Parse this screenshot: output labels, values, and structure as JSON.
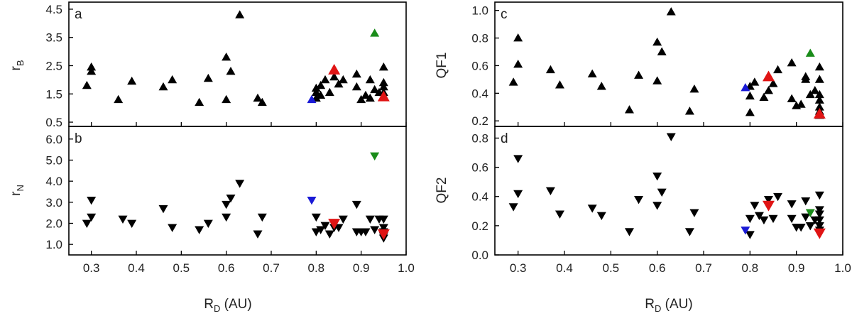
{
  "chart_data": [
    {
      "id": "a",
      "type": "scatter",
      "panel_label": "a",
      "ylabel": "r",
      "ylabel_sub": "B",
      "xlabel": "",
      "xlabel_sub": "",
      "marker": "triangle-up",
      "xlim": [
        0.25,
        1.0
      ],
      "ylim": [
        0.35,
        4.75
      ],
      "xticks": [
        "0.3",
        "0.4",
        "0.5",
        "0.6",
        "0.7",
        "0.8",
        "0.9",
        "1.0"
      ],
      "yticks": [
        "0.5",
        "1.5",
        "2.5",
        "3.5",
        "4.5"
      ],
      "series": [
        {
          "color": "#000000",
          "points": [
            [
              0.29,
              1.8
            ],
            [
              0.3,
              2.3
            ],
            [
              0.3,
              2.45
            ],
            [
              0.36,
              1.3
            ],
            [
              0.39,
              1.95
            ],
            [
              0.46,
              1.75
            ],
            [
              0.48,
              2.0
            ],
            [
              0.54,
              1.2
            ],
            [
              0.56,
              2.05
            ],
            [
              0.6,
              2.8
            ],
            [
              0.6,
              1.3
            ],
            [
              0.61,
              2.3
            ],
            [
              0.63,
              4.3
            ],
            [
              0.67,
              1.35
            ],
            [
              0.68,
              1.2
            ],
            [
              0.8,
              1.35
            ],
            [
              0.8,
              1.55
            ],
            [
              0.8,
              1.7
            ],
            [
              0.81,
              1.45
            ],
            [
              0.81,
              1.8
            ],
            [
              0.82,
              2.0
            ],
            [
              0.83,
              1.55
            ],
            [
              0.84,
              2.1
            ],
            [
              0.85,
              1.85
            ],
            [
              0.86,
              2.0
            ],
            [
              0.89,
              2.2
            ],
            [
              0.89,
              1.75
            ],
            [
              0.9,
              1.3
            ],
            [
              0.91,
              1.45
            ],
            [
              0.92,
              2.0
            ],
            [
              0.92,
              1.35
            ],
            [
              0.93,
              1.65
            ],
            [
              0.94,
              1.55
            ],
            [
              0.95,
              1.9
            ],
            [
              0.95,
              1.75
            ],
            [
              0.95,
              1.55
            ],
            [
              0.95,
              1.4
            ],
            [
              0.95,
              2.45
            ]
          ]
        },
        {
          "color": "#1a1ad6",
          "points": [
            [
              0.79,
              1.3
            ]
          ]
        },
        {
          "color": "#e01414",
          "big": true,
          "points": [
            [
              0.84,
              2.35
            ],
            [
              0.95,
              1.4
            ]
          ]
        },
        {
          "color": "#1a8c1a",
          "points": [
            [
              0.93,
              3.65
            ]
          ]
        }
      ]
    },
    {
      "id": "b",
      "type": "scatter",
      "panel_label": "b",
      "ylabel": "r",
      "ylabel_sub": "N",
      "xlabel": "R",
      "xlabel_sub": "D",
      "xlabel_suffix": " (AU)",
      "marker": "triangle-down",
      "xlim": [
        0.25,
        1.0
      ],
      "ylim": [
        0.5,
        6.6
      ],
      "xticks": [
        "0.3",
        "0.4",
        "0.5",
        "0.6",
        "0.7",
        "0.8",
        "0.9",
        "1.0"
      ],
      "yticks": [
        "1.0",
        "2.0",
        "3.0",
        "4.0",
        "5.0",
        "6.0"
      ],
      "series": [
        {
          "color": "#000000",
          "points": [
            [
              0.29,
              2.0
            ],
            [
              0.3,
              2.3
            ],
            [
              0.3,
              3.1
            ],
            [
              0.37,
              2.2
            ],
            [
              0.39,
              2.0
            ],
            [
              0.46,
              2.7
            ],
            [
              0.48,
              1.8
            ],
            [
              0.54,
              1.7
            ],
            [
              0.56,
              2.0
            ],
            [
              0.6,
              2.3
            ],
            [
              0.6,
              2.9
            ],
            [
              0.61,
              3.2
            ],
            [
              0.63,
              3.9
            ],
            [
              0.67,
              1.5
            ],
            [
              0.68,
              2.3
            ],
            [
              0.8,
              1.6
            ],
            [
              0.8,
              2.3
            ],
            [
              0.81,
              1.7
            ],
            [
              0.82,
              1.9
            ],
            [
              0.83,
              1.5
            ],
            [
              0.84,
              1.8
            ],
            [
              0.85,
              1.8
            ],
            [
              0.86,
              2.2
            ],
            [
              0.89,
              2.9
            ],
            [
              0.89,
              1.6
            ],
            [
              0.9,
              1.6
            ],
            [
              0.91,
              1.6
            ],
            [
              0.92,
              2.2
            ],
            [
              0.93,
              1.7
            ],
            [
              0.94,
              2.2
            ],
            [
              0.95,
              2.2
            ],
            [
              0.95,
              1.8
            ],
            [
              0.95,
              1.6
            ],
            [
              0.95,
              1.4
            ],
            [
              0.95,
              1.3
            ]
          ]
        },
        {
          "color": "#1a1ad6",
          "points": [
            [
              0.79,
              3.1
            ]
          ]
        },
        {
          "color": "#e01414",
          "big": true,
          "points": [
            [
              0.84,
              2.0
            ],
            [
              0.95,
              1.5
            ]
          ]
        },
        {
          "color": "#1a8c1a",
          "points": [
            [
              0.93,
              5.2
            ]
          ]
        }
      ]
    },
    {
      "id": "c",
      "type": "scatter",
      "panel_label": "c",
      "ylabel": "QF1",
      "ylabel_sub": "",
      "xlabel": "",
      "xlabel_sub": "",
      "marker": "triangle-up",
      "xlim": [
        0.25,
        1.0
      ],
      "ylim": [
        0.16,
        1.06
      ],
      "xticks": [
        "0.3",
        "0.4",
        "0.5",
        "0.6",
        "0.7",
        "0.8",
        "0.9",
        "1.0"
      ],
      "yticks": [
        "0.2",
        "0.4",
        "0.6",
        "0.8",
        "1.0"
      ],
      "series": [
        {
          "color": "#000000",
          "points": [
            [
              0.29,
              0.48
            ],
            [
              0.3,
              0.8
            ],
            [
              0.3,
              0.61
            ],
            [
              0.37,
              0.57
            ],
            [
              0.39,
              0.46
            ],
            [
              0.46,
              0.54
            ],
            [
              0.48,
              0.45
            ],
            [
              0.54,
              0.28
            ],
            [
              0.56,
              0.53
            ],
            [
              0.6,
              0.77
            ],
            [
              0.6,
              0.49
            ],
            [
              0.61,
              0.7
            ],
            [
              0.63,
              0.99
            ],
            [
              0.67,
              0.27
            ],
            [
              0.68,
              0.43
            ],
            [
              0.8,
              0.26
            ],
            [
              0.8,
              0.38
            ],
            [
              0.8,
              0.45
            ],
            [
              0.81,
              0.48
            ],
            [
              0.83,
              0.37
            ],
            [
              0.84,
              0.42
            ],
            [
              0.85,
              0.47
            ],
            [
              0.86,
              0.57
            ],
            [
              0.89,
              0.62
            ],
            [
              0.89,
              0.36
            ],
            [
              0.9,
              0.31
            ],
            [
              0.91,
              0.32
            ],
            [
              0.92,
              0.5
            ],
            [
              0.92,
              0.52
            ],
            [
              0.93,
              0.39
            ],
            [
              0.94,
              0.42
            ],
            [
              0.95,
              0.59
            ],
            [
              0.95,
              0.5
            ],
            [
              0.95,
              0.39
            ],
            [
              0.95,
              0.35
            ],
            [
              0.95,
              0.3
            ],
            [
              0.95,
              0.27
            ],
            [
              0.95,
              0.24
            ]
          ]
        },
        {
          "color": "#1a1ad6",
          "points": [
            [
              0.79,
              0.44
            ]
          ]
        },
        {
          "color": "#e01414",
          "big": true,
          "points": [
            [
              0.84,
              0.52
            ],
            [
              0.95,
              0.25
            ]
          ]
        },
        {
          "color": "#1a8c1a",
          "points": [
            [
              0.93,
              0.69
            ]
          ]
        }
      ]
    },
    {
      "id": "d",
      "type": "scatter",
      "panel_label": "d",
      "ylabel": "QF2",
      "ylabel_sub": "",
      "xlabel": "R",
      "xlabel_sub": "D",
      "xlabel_suffix": " (AU)",
      "marker": "triangle-down",
      "xlim": [
        0.25,
        1.0
      ],
      "ylim": [
        0.0,
        0.88
      ],
      "xticks": [
        "0.3",
        "0.4",
        "0.5",
        "0.6",
        "0.7",
        "0.8",
        "0.9",
        "1.0"
      ],
      "yticks": [
        "0.0",
        "0.2",
        "0.4",
        "0.6",
        "0.8"
      ],
      "series": [
        {
          "color": "#000000",
          "points": [
            [
              0.29,
              0.33
            ],
            [
              0.3,
              0.42
            ],
            [
              0.3,
              0.66
            ],
            [
              0.37,
              0.44
            ],
            [
              0.39,
              0.28
            ],
            [
              0.46,
              0.32
            ],
            [
              0.48,
              0.27
            ],
            [
              0.54,
              0.16
            ],
            [
              0.56,
              0.38
            ],
            [
              0.6,
              0.54
            ],
            [
              0.6,
              0.34
            ],
            [
              0.61,
              0.43
            ],
            [
              0.63,
              0.81
            ],
            [
              0.67,
              0.16
            ],
            [
              0.68,
              0.29
            ],
            [
              0.8,
              0.14
            ],
            [
              0.8,
              0.25
            ],
            [
              0.81,
              0.34
            ],
            [
              0.82,
              0.27
            ],
            [
              0.83,
              0.24
            ],
            [
              0.84,
              0.38
            ],
            [
              0.85,
              0.25
            ],
            [
              0.86,
              0.4
            ],
            [
              0.89,
              0.35
            ],
            [
              0.89,
              0.25
            ],
            [
              0.9,
              0.19
            ],
            [
              0.91,
              0.19
            ],
            [
              0.92,
              0.37
            ],
            [
              0.92,
              0.26
            ],
            [
              0.93,
              0.2
            ],
            [
              0.94,
              0.24
            ],
            [
              0.95,
              0.41
            ],
            [
              0.95,
              0.31
            ],
            [
              0.95,
              0.28
            ],
            [
              0.95,
              0.24
            ],
            [
              0.95,
              0.2
            ],
            [
              0.95,
              0.17
            ]
          ]
        },
        {
          "color": "#1a1ad6",
          "points": [
            [
              0.79,
              0.17
            ]
          ]
        },
        {
          "color": "#e01414",
          "big": true,
          "points": [
            [
              0.84,
              0.34
            ],
            [
              0.95,
              0.15
            ]
          ]
        },
        {
          "color": "#1a8c1a",
          "points": [
            [
              0.93,
              0.29
            ]
          ]
        }
      ]
    }
  ]
}
